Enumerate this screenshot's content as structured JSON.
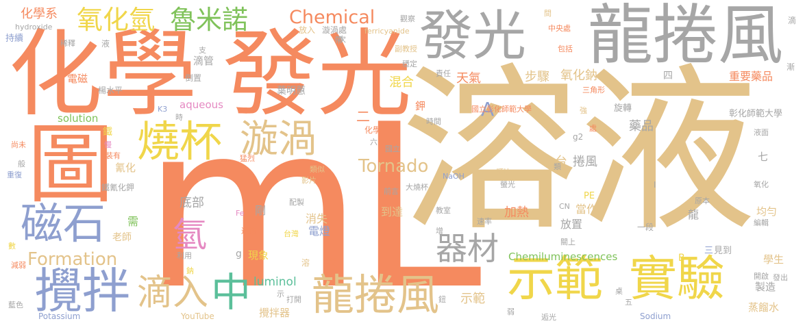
{
  "word_cloud": {
    "colors": {
      "orange": "#f58a5f",
      "tan": "#e3c38a",
      "gray": "#a6a6a6",
      "blue": "#8e9fcf",
      "yellow": "#f0d64a",
      "green": "#7fc25a",
      "pink": "#e589c2",
      "teal": "#5bbf9a"
    },
    "words": {
      "ml": "mL",
      "rongye": "溶液",
      "huaxue": "化學",
      "faguang_big": "發光",
      "faguang_tr": "發光",
      "longjuanfeng_tr": "龍捲風",
      "tu": "圖",
      "shaobei": "燒杯",
      "xuanwo": "漩渦",
      "shifan_b": "示範",
      "shiyan": "實驗",
      "cishi": "磁石",
      "jiaoban": "攪拌",
      "longjuanfeng_b": "龍捲風",
      "dirui": "滴入",
      "zhong": "中",
      "qing": "氫",
      "qicai": "器材",
      "formation": "Formation",
      "tornado": "Tornado",
      "chemical": "Chemical",
      "lumino": "魯米諾",
      "yanghuaqing": "氧化氫",
      "huaxuexi": "化學系",
      "hydroxide": "hydroxide",
      "chixu": "持續",
      "xishi": "稀釋",
      "ye": "液",
      "dai": "帶",
      "xuanwochu": "漩渦處",
      "fangru": "放入",
      "ci": "次",
      "guancha": "觀察",
      "ferricyanide": "ferricyanide",
      "zhongyangchu": "中央處",
      "jian_top": "間",
      "di": "滴",
      "jian_right": "漸",
      "fujiaoshou": "副教授",
      "wending": "穩定",
      "baokuo": "包括",
      "zeren": "責任",
      "sanjiaoxing": "三角形",
      "zhongyaoyaopin": "重要藥品",
      "changhua_r": "彰化師範大學",
      "zhi": "支",
      "diguan": "滴管",
      "dianci": "電磁",
      "daozhi": "倒置",
      "yeminghui": "葉明蕙",
      "yangshuiping": "楊水平",
      "k3": "K3",
      "shi_small": "時",
      "aqueous": "aqueous",
      "a_big": "A",
      "tianqi": "天氣",
      "buzhou": "步驟",
      "yanghuana": "氧化鈉",
      "si": "四",
      "hunhe": "混合",
      "jia": "鉀",
      "guoli_changhua": "國立彰化師範大學",
      "xuanzhuan": "旋轉",
      "qiang": "強",
      "solution": "solution",
      "er": "二",
      "tie": "鐵",
      "chu": "處",
      "shijian": "時間",
      "huaxue_small": "化學",
      "liu": "六",
      "guoli": "國立",
      "g2": "g2",
      "yaopin": "藥品",
      "yemian": "液面",
      "shangwei": "尚未",
      "man": "慢",
      "zhuangyou": "裝有",
      "qinghua": "氰化",
      "ban": "般",
      "chongfu": "重復",
      "menglie": "猛烈",
      "leisi": "類似",
      "yingpian": "影片",
      "tiqinghuajia": "鐵氰化鉀",
      "tai": "台",
      "juanfeng": "捲風",
      "qi": "七",
      "qianyan": "前言",
      "dashaobei": "大燒杯",
      "naoh": "NaOH",
      "leibi": "類比",
      "lei": "類",
      "yingguang": "螢光",
      "yanghua": "氧化",
      "dibu": "底部",
      "pe": "PE",
      "yuanben": "原本",
      "xu": "需",
      "laoshi": "老師",
      "gang": "剛",
      "xiaoshi": "消失",
      "daoda": "到達",
      "jiare": "加熱",
      "dangzuo": "當作",
      "fangzhi": "放置",
      "long": "龍",
      "yiduan": "一段",
      "cn": "CN",
      "junyun": "均勻",
      "jiaoshi": "教室",
      "sulv": "速率",
      "zeng": "增",
      "fe": "Fe",
      "peizhi": "配製",
      "liangjie": "連結",
      "taiwan": "台灣",
      "diandeng": "電燈",
      "guanshang": "關上",
      "bianji": "編輯",
      "shu": "數",
      "liyong": "利用",
      "g_letter": "g",
      "xianxiang": "現象",
      "chemiluminescences": "Chemiluminescences",
      "san": "三",
      "jiandao": "見到",
      "xuesheng": "學生",
      "jianruo": "減弱",
      "na_small": "鈉",
      "rong_small": "溶",
      "qing_small": "請",
      "luminol": "luminol",
      "b_letter": "B",
      "kaiqi": "開啟",
      "fachu": "發出",
      "zhizao": "製造",
      "lanse": "藍色",
      "potassium": "Potassium",
      "shi_vert": "示",
      "dakai": "打開",
      "niu": "鈕",
      "youtube": "YouTube",
      "jiaobanqi": "攪拌器",
      "shifan_small": "示範",
      "ruo": "弱",
      "zhuo": "桌",
      "wu": "五",
      "zhongguang": "逅光",
      "sodium": "Sodium",
      "zhengliushui": "蒸餾水",
      "i_letter": "I"
    }
  }
}
